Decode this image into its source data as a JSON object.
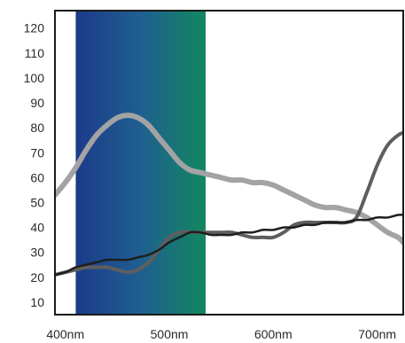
{
  "chart_data": {
    "type": "line",
    "title": "",
    "xlabel": "",
    "ylabel": "",
    "xlim": [
      390,
      725
    ],
    "ylim": [
      5,
      127
    ],
    "xticks": [
      {
        "value": 400,
        "label": "400nm"
      },
      {
        "value": 500,
        "label": "500nm"
      },
      {
        "value": 600,
        "label": "600nm"
      },
      {
        "value": 700,
        "label": "700nm"
      }
    ],
    "yticks": [
      {
        "value": 10,
        "label": "10"
      },
      {
        "value": 20,
        "label": "20"
      },
      {
        "value": 30,
        "label": "30"
      },
      {
        "value": 40,
        "label": "40"
      },
      {
        "value": 50,
        "label": "50"
      },
      {
        "value": 60,
        "label": "60"
      },
      {
        "value": 70,
        "label": "70"
      },
      {
        "value": 80,
        "label": "80"
      },
      {
        "value": 90,
        "label": "90"
      },
      {
        "value": 100,
        "label": "100"
      },
      {
        "value": 110,
        "label": "110"
      },
      {
        "value": 120,
        "label": "120"
      }
    ],
    "grid": false,
    "legend": "none",
    "highlight_band": {
      "x_start": 410,
      "x_end": 535,
      "gradient_colors": [
        "#1c3b8a",
        "#1f5f90",
        "#13875f"
      ]
    },
    "series": [
      {
        "color": "#a3a3a3",
        "line_width": 6,
        "x": [
          390,
          400,
          410,
          420,
          430,
          440,
          450,
          460,
          470,
          480,
          490,
          500,
          510,
          520,
          530,
          540,
          550,
          560,
          570,
          580,
          590,
          600,
          610,
          620,
          630,
          640,
          650,
          660,
          670,
          680,
          690,
          700,
          710,
          720,
          725
        ],
        "y": [
          53,
          58,
          64,
          71,
          77,
          81,
          84,
          85,
          84,
          81,
          76,
          71,
          66,
          63,
          62,
          61,
          60,
          59,
          59,
          58,
          58,
          57,
          55,
          53,
          51,
          49,
          48,
          48,
          47,
          46,
          44,
          41,
          38,
          36,
          34
        ]
      },
      {
        "color": "#5e5e5e",
        "line_width": 4,
        "x": [
          390,
          400,
          410,
          420,
          430,
          440,
          450,
          460,
          470,
          480,
          490,
          500,
          510,
          520,
          530,
          540,
          550,
          560,
          570,
          580,
          590,
          600,
          610,
          620,
          630,
          640,
          650,
          660,
          670,
          680,
          690,
          700,
          710,
          720,
          725
        ],
        "y": [
          21,
          22,
          23,
          24,
          24,
          24,
          23,
          22,
          23,
          26,
          31,
          36,
          38,
          38,
          38,
          38,
          38,
          38,
          37,
          36,
          36,
          36,
          38,
          41,
          42,
          42,
          42,
          42,
          42,
          44,
          54,
          65,
          73,
          77,
          78
        ]
      },
      {
        "color": "#1e1e1e",
        "line_width": 2.5,
        "x": [
          390,
          400,
          410,
          420,
          430,
          440,
          450,
          460,
          470,
          480,
          490,
          500,
          510,
          520,
          530,
          540,
          550,
          560,
          570,
          580,
          590,
          600,
          610,
          620,
          630,
          640,
          650,
          660,
          670,
          680,
          690,
          700,
          710,
          720,
          725
        ],
        "y": [
          21,
          22,
          24,
          25,
          26,
          27,
          27,
          27,
          28,
          29,
          31,
          34,
          36,
          38,
          38,
          37,
          37,
          37,
          38,
          38,
          39,
          39,
          40,
          40,
          41,
          41,
          42,
          42,
          42,
          43,
          43,
          44,
          44,
          45,
          45
        ]
      }
    ]
  }
}
